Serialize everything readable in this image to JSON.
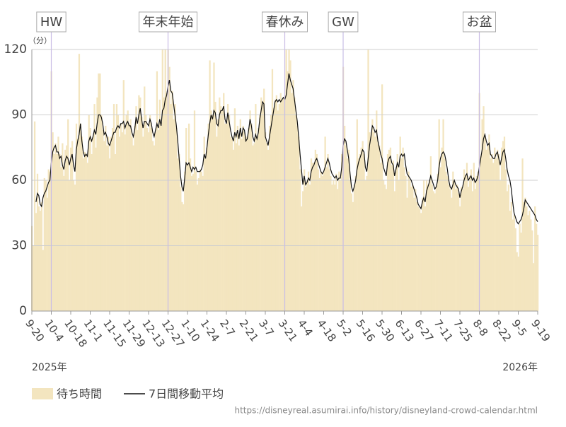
{
  "chart_data": {
    "type": "bar",
    "y_unit_label": "（分）",
    "categories": [
      "9-20",
      null,
      null,
      null,
      null,
      null,
      null,
      null,
      null,
      null,
      null,
      null,
      null,
      null,
      "10-4",
      null,
      null,
      null,
      null,
      null,
      null,
      null,
      null,
      null,
      null,
      null,
      null,
      null,
      "10-18",
      null,
      null,
      null,
      null,
      null,
      null,
      null,
      null,
      null,
      null,
      null,
      null,
      null,
      "11-1",
      null,
      null,
      null,
      null,
      null,
      null,
      null,
      null,
      null,
      null,
      null,
      null,
      null,
      "11-15",
      null,
      null,
      null,
      null,
      null,
      null,
      null,
      null,
      null,
      null,
      null,
      null,
      null,
      "11-29",
      null,
      null,
      null,
      null,
      null,
      null,
      null,
      null,
      null,
      null,
      null,
      null,
      null,
      "12-13",
      null,
      null,
      null,
      null,
      null,
      null,
      null,
      null,
      null,
      null,
      null,
      null,
      null,
      "12-27",
      null,
      null,
      null,
      null,
      null,
      null,
      null,
      null,
      null,
      null,
      null,
      null,
      null,
      "1-10",
      null,
      null,
      null,
      null,
      null,
      null,
      null,
      null,
      null,
      null,
      null,
      null,
      null,
      "1-24",
      null,
      null,
      null,
      null,
      null,
      null,
      null,
      null,
      null,
      null,
      null,
      null,
      null,
      "2-7",
      null,
      null,
      null,
      null,
      null,
      null,
      null,
      null,
      null,
      null,
      null,
      null,
      null,
      "2-21",
      null,
      null,
      null,
      null,
      null,
      null,
      null,
      null,
      null,
      null,
      null,
      null,
      null,
      "3-7",
      null,
      null,
      null,
      null,
      null,
      null,
      null,
      null,
      null,
      null,
      null,
      null,
      null,
      "3-21",
      null,
      null,
      null,
      null,
      null,
      null,
      null,
      null,
      null,
      null,
      null,
      null,
      null,
      "4-4",
      null,
      null,
      null,
      null,
      null,
      null,
      null,
      null,
      null,
      null,
      null,
      null,
      null,
      "4-18",
      null,
      null,
      null,
      null,
      null,
      null,
      null,
      null,
      null,
      null,
      null,
      null,
      null,
      "5-2",
      null,
      null,
      null,
      null,
      null,
      null,
      null,
      null,
      null,
      null,
      null,
      null,
      null,
      "5-16",
      null,
      null,
      null,
      null,
      null,
      null,
      null,
      null,
      null,
      null,
      null,
      null,
      null,
      "5-30",
      null,
      null,
      null,
      null,
      null,
      null,
      null,
      null,
      null,
      null,
      null,
      null,
      null,
      "6-13",
      null,
      null,
      null,
      null,
      null,
      null,
      null,
      null,
      null,
      null,
      null,
      null,
      null,
      "6-27",
      null,
      null,
      null,
      null,
      null,
      null,
      null,
      null,
      null,
      null,
      null,
      null,
      null,
      "7-11",
      null,
      null,
      null,
      null,
      null,
      null,
      null,
      null,
      null,
      null,
      null,
      null,
      null,
      "7-25",
      null,
      null,
      null,
      null,
      null,
      null,
      null,
      null,
      null,
      null,
      null,
      null,
      null,
      "8-8",
      null,
      null,
      null,
      null,
      null,
      null,
      null,
      null,
      null,
      null,
      null,
      null,
      null,
      "8-22",
      null,
      null,
      null,
      null,
      null,
      null,
      null,
      null,
      null,
      null,
      null,
      null,
      null,
      "9-5",
      null,
      null,
      null,
      null,
      null,
      null,
      null,
      null,
      null,
      null,
      null,
      null,
      null,
      "9-19"
    ],
    "series": [
      {
        "name": "待ち時間",
        "type": "bar",
        "color": "#f3e5bf",
        "values": [
          39,
          30,
          87,
          45,
          63,
          48,
          46,
          50,
          28,
          61,
          60,
          52,
          65,
          64,
          110,
          82,
          72,
          77,
          72,
          80,
          72,
          66,
          77,
          62,
          74,
          76,
          88,
          60,
          75,
          78,
          60,
          58,
          86,
          79,
          118,
          86,
          80,
          70,
          73,
          72,
          68,
          90,
          84,
          72,
          80,
          95,
          75,
          98,
          109,
          109,
          90,
          83,
          78,
          85,
          76,
          80,
          70,
          80,
          84,
          95,
          72,
          95,
          90,
          80,
          86,
          82,
          106,
          81,
          90,
          92,
          86,
          88,
          80,
          76,
          85,
          94,
          83,
          99,
          98,
          89,
          80,
          103,
          90,
          84,
          82,
          90,
          84,
          78,
          76,
          82,
          110,
          83,
          97,
          85,
          120,
          98,
          120,
          100,
          120,
          112,
          95,
          101,
          88,
          95,
          84,
          70,
          72,
          57,
          50,
          49,
          64,
          84,
          67,
          86,
          70,
          62,
          63,
          92,
          64,
          58,
          61,
          65,
          64,
          62,
          80,
          70,
          75,
          86,
          115,
          92,
          90,
          114,
          96,
          80,
          88,
          98,
          94,
          92,
          100,
          86,
          86,
          95,
          90,
          80,
          79,
          74,
          93,
          77,
          85,
          76,
          88,
          79,
          85,
          82,
          80,
          79,
          84,
          92,
          86,
          76,
          77,
          95,
          80,
          84,
          90,
          98,
          95,
          102,
          82,
          77,
          74,
          85,
          90,
          111,
          93,
          97,
          99,
          92,
          95,
          100,
          97,
          98,
          99,
          120,
          110,
          120,
          115,
          100,
          106,
          98,
          90,
          85,
          80,
          65,
          48,
          55,
          65,
          57,
          60,
          64,
          58,
          70,
          68,
          68,
          74,
          72,
          65,
          61,
          64,
          62,
          64,
          80,
          66,
          72,
          65,
          62,
          58,
          60,
          58,
          63,
          56,
          64,
          60,
          72,
          112,
          85,
          76,
          70,
          74,
          60,
          54,
          50,
          58,
          62,
          88,
          70,
          72,
          75,
          78,
          72,
          60,
          62,
          120,
          82,
          80,
          88,
          82,
          80,
          92,
          78,
          76,
          68,
          104,
          60,
          58,
          56,
          72,
          74,
          75,
          67,
          69,
          55,
          66,
          72,
          60,
          80,
          70,
          75,
          66,
          62,
          52,
          64,
          60,
          57,
          58,
          52,
          56,
          50,
          48,
          47,
          45,
          52,
          60,
          48,
          60,
          58,
          60,
          71,
          58,
          55,
          54,
          57,
          63,
          88,
          66,
          75,
          88,
          70,
          64,
          62,
          58,
          56,
          52,
          64,
          60,
          56,
          58,
          54,
          48,
          57,
          56,
          65,
          62,
          68,
          57,
          62,
          65,
          55,
          68,
          56,
          62,
          64,
          100,
          71,
          88,
          94,
          80,
          74,
          76,
          81,
          70,
          72,
          68,
          75,
          70,
          74,
          72,
          60,
          75,
          78,
          80,
          65,
          55,
          58,
          46,
          50,
          42,
          44,
          38,
          27,
          25,
          40,
          36,
          70,
          50,
          52,
          48,
          44,
          46,
          42,
          37,
          22,
          48,
          40,
          35
        ]
      },
      {
        "name": "7日間移動平均",
        "type": "line",
        "color": "#111111",
        "values": [
          null,
          null,
          null,
          50,
          54,
          53,
          49,
          48,
          52,
          54,
          55,
          57,
          59,
          60,
          68,
          73,
          75,
          76,
          73,
          73,
          70,
          71,
          67,
          65,
          69,
          71,
          70,
          67,
          70,
          72,
          67,
          64,
          74,
          78,
          81,
          86,
          78,
          73,
          71,
          72,
          71,
          78,
          80,
          78,
          80,
          83,
          81,
          86,
          90,
          90,
          89,
          86,
          81,
          82,
          80,
          77,
          76,
          78,
          80,
          82,
          82,
          84,
          85,
          84,
          86,
          86,
          87,
          84,
          86,
          87,
          85,
          85,
          82,
          80,
          83,
          89,
          86,
          90,
          93,
          88,
          84,
          87,
          87,
          86,
          85,
          88,
          86,
          82,
          80,
          83,
          86,
          84,
          88,
          85,
          92,
          93,
          97,
          99,
          103,
          106,
          101,
          100,
          95,
          90,
          85,
          78,
          70,
          62,
          57,
          55,
          61,
          68,
          67,
          68,
          66,
          64,
          66,
          65,
          66,
          64,
          64,
          64,
          65,
          67,
          72,
          70,
          75,
          81,
          86,
          90,
          88,
          92,
          91,
          86,
          85,
          90,
          92,
          92,
          94,
          88,
          86,
          91,
          87,
          83,
          80,
          78,
          82,
          80,
          83,
          79,
          84,
          80,
          84,
          83,
          78,
          79,
          83,
          88,
          85,
          80,
          78,
          81,
          79,
          82,
          88,
          92,
          96,
          95,
          80,
          78,
          76,
          80,
          84,
          88,
          92,
          96,
          97,
          96,
          97,
          96,
          97,
          98,
          97,
          99,
          104,
          109,
          106,
          104,
          102,
          97,
          92,
          87,
          80,
          72,
          65,
          58,
          62,
          58,
          59,
          61,
          60,
          64,
          66,
          67,
          69,
          70,
          68,
          66,
          64,
          63,
          64,
          66,
          68,
          70,
          68,
          65,
          63,
          62,
          61,
          62,
          60,
          61,
          61,
          66,
          76,
          79,
          78,
          74,
          70,
          63,
          57,
          55,
          57,
          60,
          65,
          68,
          70,
          72,
          74,
          73,
          66,
          64,
          70,
          76,
          80,
          85,
          84,
          82,
          83,
          78,
          75,
          72,
          70,
          66,
          64,
          62,
          68,
          70,
          71,
          68,
          67,
          62,
          65,
          68,
          66,
          71,
          72,
          71,
          72,
          67,
          63,
          62,
          61,
          60,
          58,
          56,
          54,
          52,
          49,
          48,
          47,
          50,
          52,
          50,
          55,
          57,
          59,
          62,
          60,
          58,
          56,
          57,
          60,
          66,
          70,
          72,
          73,
          72,
          69,
          65,
          60,
          57,
          56,
          58,
          60,
          58,
          57,
          56,
          52,
          55,
          57,
          60,
          62,
          63,
          60,
          61,
          62,
          60,
          61,
          59,
          60,
          62,
          66,
          70,
          74,
          79,
          81,
          78,
          76,
          77,
          72,
          71,
          70,
          70,
          72,
          73,
          70,
          67,
          70,
          73,
          74,
          70,
          65,
          62,
          60,
          56,
          50,
          45,
          43,
          41,
          40,
          41,
          42,
          44,
          47,
          51,
          50,
          49,
          48,
          47,
          46,
          45,
          44,
          42,
          41
        ]
      }
    ],
    "ylim": [
      0,
      120
    ],
    "yticks": [
      0,
      30,
      60,
      90,
      120
    ],
    "grid": true,
    "annotations": [
      {
        "text": "HW",
        "at": "10-4"
      },
      {
        "text": "年末年始",
        "at": "12-27"
      },
      {
        "text": "春休み",
        "at": "3-21"
      },
      {
        "text": "GW",
        "at": "5-2"
      },
      {
        "text": "お盆",
        "at": "8-8"
      }
    ],
    "year_labels": [
      "2025年",
      "2026年"
    ],
    "source": "https://disneyreal.asumirai.info/history/disneyland-crowd-calendar.html"
  }
}
